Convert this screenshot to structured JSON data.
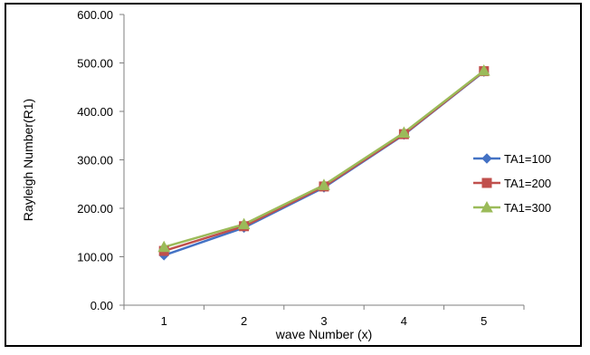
{
  "chart_data": {
    "type": "line",
    "title": "",
    "xlabel": "wave Number (x)",
    "ylabel": "Rayleigh Number(R1)",
    "x": [
      1,
      2,
      3,
      4,
      5
    ],
    "ylim": [
      0,
      600
    ],
    "yticks": [
      "0.00",
      "100.00",
      "200.00",
      "300.00",
      "400.00",
      "500.00",
      "600.00"
    ],
    "xticks": [
      "1",
      "2",
      "3",
      "4",
      "5"
    ],
    "grid": false,
    "legend_position": "right",
    "series": [
      {
        "name": "TA1=100",
        "values": [
          103,
          160,
          243,
          352,
          482
        ],
        "color": "#4472C4",
        "marker": "diamond"
      },
      {
        "name": "TA1=200",
        "values": [
          112,
          163,
          245,
          353,
          483
        ],
        "color": "#C0504D",
        "marker": "square"
      },
      {
        "name": "TA1=300",
        "values": [
          120,
          167,
          248,
          356,
          484
        ],
        "color": "#9BBB59",
        "marker": "triangle"
      }
    ]
  }
}
